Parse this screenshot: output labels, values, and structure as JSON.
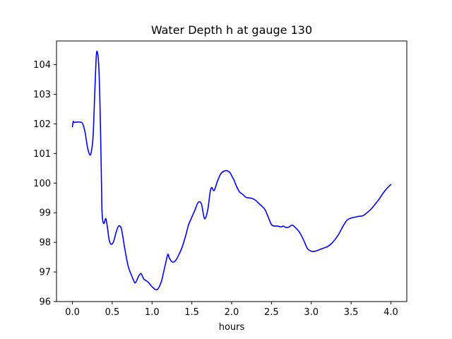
{
  "chart_data": {
    "type": "line",
    "title": "Water Depth h at gauge 130",
    "xlabel": "hours",
    "ylabel": "",
    "xlim": [
      -0.2,
      4.2
    ],
    "ylim": [
      96.0,
      104.8
    ],
    "xticks": [
      0.0,
      0.5,
      1.0,
      1.5,
      2.0,
      2.5,
      3.0,
      3.5,
      4.0
    ],
    "xtick_labels": [
      "0.0",
      "0.5",
      "1.0",
      "1.5",
      "2.0",
      "2.5",
      "3.0",
      "3.5",
      "4.0"
    ],
    "yticks": [
      96,
      97,
      98,
      99,
      100,
      101,
      102,
      103,
      104
    ],
    "ytick_labels": [
      "96",
      "97",
      "98",
      "99",
      "100",
      "101",
      "102",
      "103",
      "104"
    ],
    "grid": false,
    "legend": null,
    "series": [
      {
        "color": "#0000ff",
        "x": [
          0.0,
          0.01,
          0.02,
          0.05,
          0.1,
          0.13,
          0.16,
          0.19,
          0.22,
          0.24,
          0.26,
          0.28,
          0.3,
          0.315,
          0.33,
          0.345,
          0.36,
          0.37,
          0.38,
          0.39,
          0.4,
          0.42,
          0.44,
          0.46,
          0.48,
          0.5,
          0.52,
          0.55,
          0.58,
          0.61,
          0.63,
          0.66,
          0.7,
          0.74,
          0.78,
          0.8,
          0.83,
          0.86,
          0.88,
          0.9,
          0.93,
          0.96,
          1.0,
          1.05,
          1.08,
          1.12,
          1.15,
          1.18,
          1.2,
          1.22,
          1.26,
          1.3,
          1.34,
          1.38,
          1.42,
          1.46,
          1.5,
          1.54,
          1.58,
          1.62,
          1.66,
          1.7,
          1.73,
          1.75,
          1.78,
          1.82,
          1.86,
          1.9,
          1.94,
          1.98,
          2.0,
          2.03,
          2.06,
          2.1,
          2.14,
          2.18,
          2.22,
          2.26,
          2.3,
          2.34,
          2.38,
          2.42,
          2.46,
          2.5,
          2.54,
          2.58,
          2.62,
          2.65,
          2.68,
          2.72,
          2.76,
          2.8,
          2.85,
          2.9,
          2.95,
          3.0,
          3.05,
          3.1,
          3.15,
          3.2,
          3.25,
          3.3,
          3.35,
          3.4,
          3.45,
          3.5,
          3.55,
          3.6,
          3.65,
          3.7,
          3.75,
          3.8,
          3.85,
          3.9,
          3.95,
          4.0
        ],
        "y": [
          101.9,
          102.08,
          102.05,
          102.06,
          102.06,
          102.0,
          101.7,
          101.2,
          100.95,
          101.1,
          101.6,
          103.0,
          104.3,
          104.4,
          104.0,
          102.8,
          100.8,
          99.2,
          98.75,
          98.65,
          98.65,
          98.8,
          98.5,
          98.1,
          97.95,
          97.95,
          98.05,
          98.35,
          98.55,
          98.5,
          98.25,
          97.75,
          97.2,
          96.9,
          96.65,
          96.67,
          96.85,
          96.95,
          96.85,
          96.75,
          96.7,
          96.63,
          96.5,
          96.4,
          96.45,
          96.7,
          97.05,
          97.4,
          97.6,
          97.45,
          97.33,
          97.4,
          97.6,
          97.85,
          98.2,
          98.6,
          98.85,
          99.1,
          99.35,
          99.3,
          98.8,
          99.1,
          99.7,
          99.85,
          99.75,
          100.05,
          100.3,
          100.4,
          100.42,
          100.35,
          100.25,
          100.1,
          99.9,
          99.7,
          99.62,
          99.52,
          99.5,
          99.48,
          99.42,
          99.32,
          99.22,
          99.1,
          98.85,
          98.6,
          98.55,
          98.55,
          98.52,
          98.55,
          98.5,
          98.52,
          98.58,
          98.5,
          98.35,
          98.1,
          97.8,
          97.7,
          97.7,
          97.75,
          97.8,
          97.85,
          97.95,
          98.1,
          98.3,
          98.55,
          98.75,
          98.82,
          98.85,
          98.88,
          98.9,
          99.0,
          99.12,
          99.28,
          99.45,
          99.65,
          99.82,
          99.95
        ]
      }
    ]
  }
}
